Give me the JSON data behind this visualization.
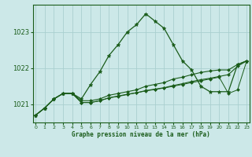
{
  "title": "Graphe pression niveau de la mer (hPa)",
  "background_color": "#cce8e8",
  "grid_color": "#aacfcf",
  "line_color": "#1a5c1a",
  "hours": [
    0,
    1,
    2,
    3,
    4,
    5,
    6,
    7,
    8,
    9,
    10,
    11,
    12,
    13,
    14,
    15,
    16,
    17,
    18,
    19,
    20,
    21,
    22,
    23
  ],
  "series1": [
    1020.7,
    1020.9,
    1021.15,
    1021.3,
    1021.3,
    1021.15,
    1021.55,
    1021.9,
    1022.35,
    1022.65,
    1023.0,
    1023.2,
    1023.5,
    1023.3,
    1023.1,
    1022.65,
    1022.2,
    1021.95,
    1021.5,
    1021.35,
    1021.35,
    1021.35,
    1022.1,
    1022.2
  ],
  "series2": [
    1020.7,
    1020.9,
    1021.15,
    1021.3,
    1021.3,
    1021.1,
    1021.1,
    1021.15,
    1021.25,
    1021.3,
    1021.35,
    1021.4,
    1021.5,
    1021.55,
    1021.6,
    1021.7,
    1021.75,
    1021.82,
    1021.88,
    1021.92,
    1021.95,
    1021.95,
    1022.1,
    1022.2
  ],
  "series3": [
    1020.7,
    1020.9,
    1021.15,
    1021.3,
    1021.3,
    1021.05,
    1021.05,
    1021.1,
    1021.18,
    1021.23,
    1021.28,
    1021.32,
    1021.38,
    1021.42,
    1021.46,
    1021.52,
    1021.57,
    1021.63,
    1021.68,
    1021.72,
    1021.77,
    1021.82,
    1022.05,
    1022.2
  ],
  "series4": [
    1020.7,
    1020.9,
    1021.15,
    1021.3,
    1021.3,
    1021.05,
    1021.05,
    1021.1,
    1021.18,
    1021.22,
    1021.27,
    1021.32,
    1021.37,
    1021.41,
    1021.45,
    1021.5,
    1021.55,
    1021.6,
    1021.65,
    1021.7,
    1021.75,
    1021.3,
    1021.4,
    1022.2
  ],
  "yticks": [
    1021,
    1022,
    1023
  ],
  "ylim": [
    1020.5,
    1023.75
  ],
  "xlim": [
    -0.3,
    23.3
  ],
  "figsize": [
    3.2,
    2.0
  ],
  "dpi": 100
}
